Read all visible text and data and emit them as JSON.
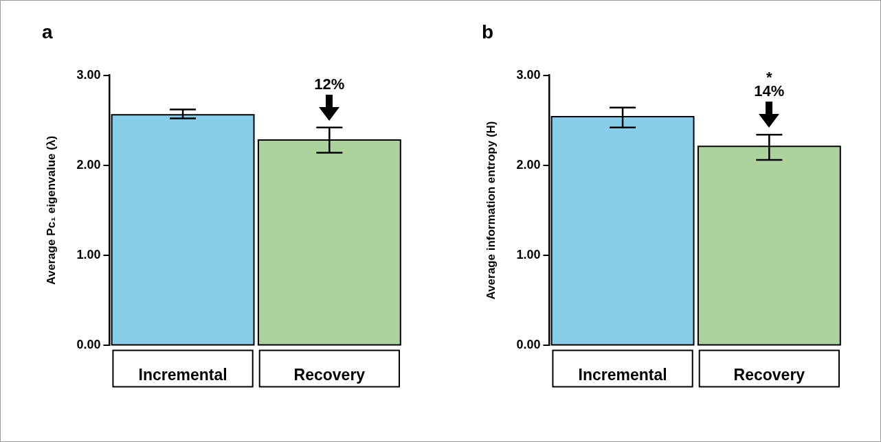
{
  "chart_data": [
    {
      "type": "bar",
      "title": "a",
      "ylabel": "Average Pc₁ eigenvalue (λ)",
      "categories": [
        "Incremental",
        "Recovery"
      ],
      "values": [
        2.56,
        2.28
      ],
      "colors": [
        "#87ceeb",
        "#acd39e"
      ],
      "errors": [
        [
          2.52,
          2.62
        ],
        [
          2.14,
          2.42
        ]
      ],
      "ylim": [
        0,
        3
      ],
      "yticks": [
        {
          "value": 0,
          "label": "0.00"
        },
        {
          "value": 1,
          "label": "1.00"
        },
        {
          "value": 2,
          "label": "2.00"
        },
        {
          "value": 3,
          "label": "3.00"
        }
      ],
      "grid": false,
      "legend": false,
      "annotations": [
        {
          "text": "12%",
          "x": "Recovery",
          "y": 2.42
        }
      ]
    },
    {
      "type": "bar",
      "title": "b",
      "ylabel": "Average information entropy (H)",
      "categories": [
        "Incremental",
        "Recovery"
      ],
      "values": [
        2.54,
        2.21
      ],
      "colors": [
        "#87ceeb",
        "#acd39e"
      ],
      "errors": [
        [
          2.42,
          2.64
        ],
        [
          2.06,
          2.34
        ]
      ],
      "ylim": [
        0,
        3
      ],
      "yticks": [
        {
          "value": 0,
          "label": "0.00"
        },
        {
          "value": 1,
          "label": "1.00"
        },
        {
          "value": 2,
          "label": "2.00"
        },
        {
          "value": 3,
          "label": "3.00"
        }
      ],
      "grid": false,
      "legend": false,
      "annotations": [
        "*",
        {
          "text": "14%",
          "x": "Recovery",
          "y": 2.34
        }
      ]
    }
  ]
}
